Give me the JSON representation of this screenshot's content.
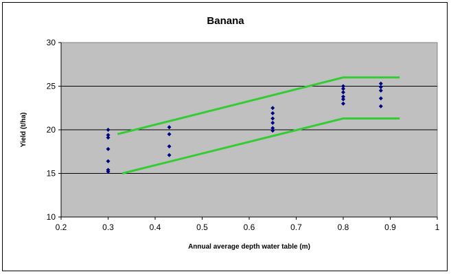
{
  "chart_data": {
    "type": "scatter",
    "title": "Banana",
    "xlabel": "Annual average depth water table (m)",
    "ylabel": "Yield (t/ha)",
    "xlim": [
      0.2,
      1
    ],
    "ylim": [
      10,
      30
    ],
    "x_ticks": [
      "0.2",
      "0.3",
      "0.4",
      "0.5",
      "0.6",
      "0.7",
      "0.8",
      "0.9",
      "1"
    ],
    "y_ticks": [
      "10",
      "15",
      "20",
      "25",
      "30"
    ],
    "horizontal_grid": true,
    "plot_background": "#c0c0c0",
    "series": [
      {
        "marker": "diamond",
        "color": "#000080",
        "points": [
          [
            0.3,
            20.0
          ],
          [
            0.3,
            19.4
          ],
          [
            0.3,
            19.1
          ],
          [
            0.3,
            17.8
          ],
          [
            0.3,
            16.4
          ],
          [
            0.3,
            15.4
          ],
          [
            0.3,
            15.2
          ],
          [
            0.43,
            20.3
          ],
          [
            0.43,
            19.5
          ],
          [
            0.43,
            18.1
          ],
          [
            0.43,
            17.1
          ],
          [
            0.65,
            22.5
          ],
          [
            0.65,
            21.9
          ],
          [
            0.65,
            21.3
          ],
          [
            0.65,
            20.8
          ],
          [
            0.65,
            20.2
          ],
          [
            0.65,
            19.9
          ],
          [
            0.8,
            25.0
          ],
          [
            0.8,
            24.7
          ],
          [
            0.8,
            24.3
          ],
          [
            0.8,
            23.8
          ],
          [
            0.8,
            23.5
          ],
          [
            0.8,
            23.0
          ],
          [
            0.88,
            25.3
          ],
          [
            0.88,
            24.9
          ],
          [
            0.88,
            24.5
          ],
          [
            0.88,
            23.6
          ],
          [
            0.88,
            22.7
          ]
        ]
      }
    ],
    "envelope_lines": [
      {
        "color": "#33cc33",
        "points": [
          [
            0.32,
            19.5
          ],
          [
            0.8,
            26.0
          ],
          [
            0.92,
            26.0
          ]
        ]
      },
      {
        "color": "#33cc33",
        "points": [
          [
            0.33,
            15.0
          ],
          [
            0.8,
            21.3
          ],
          [
            0.92,
            21.3
          ]
        ]
      }
    ]
  }
}
